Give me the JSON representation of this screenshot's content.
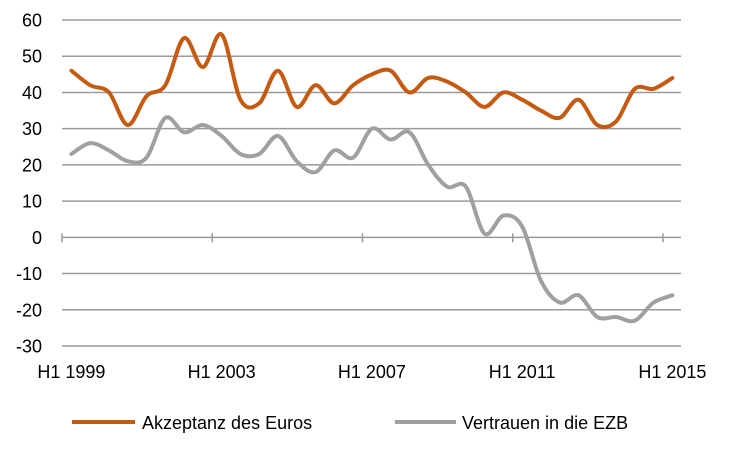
{
  "chart_data": {
    "type": "line",
    "title": "",
    "xlabel": "",
    "ylabel": "",
    "ylim": [
      -30,
      60
    ],
    "yticks": [
      60,
      50,
      40,
      30,
      20,
      10,
      0,
      -10,
      -20,
      -30
    ],
    "grid": true,
    "legend_position": "bottom",
    "x": [
      "H1 1999",
      "H2 1999",
      "H1 2000",
      "H2 2000",
      "H1 2001",
      "H2 2001",
      "H1 2002",
      "H2 2002",
      "H1 2003",
      "H2 2003",
      "H1 2004",
      "H2 2004",
      "H1 2005",
      "H2 2005",
      "H1 2006",
      "H2 2006",
      "H1 2007",
      "H2 2007",
      "H1 2008",
      "H2 2008",
      "H1 2009",
      "H2 2009",
      "H1 2010",
      "H2 2010",
      "H1 2011",
      "H2 2011",
      "H1 2012",
      "H2 2012",
      "H1 2013",
      "H2 2013",
      "H1 2014",
      "H2 2014",
      "H1 2015"
    ],
    "x_tick_labels": [
      "H1 1999",
      "H1 2003",
      "H1 2007",
      "H1 2011",
      "H1 2015"
    ],
    "x_tick_label_interval": 8,
    "series": [
      {
        "name": "Akzeptanz des Euros",
        "color": "#c55a11",
        "values": [
          46,
          42,
          40,
          31,
          39,
          42,
          55,
          47,
          56,
          38,
          37,
          46,
          36,
          42,
          37,
          42,
          45,
          46,
          40,
          44,
          43,
          40,
          36,
          40,
          38,
          35,
          33,
          38,
          31,
          32,
          41,
          41,
          44
        ]
      },
      {
        "name": "Vertrauen in die EZB",
        "color": "#a0a0a0",
        "values": [
          23,
          26,
          24,
          21,
          22,
          33,
          29,
          31,
          28,
          23,
          23,
          28,
          21,
          18,
          24,
          22,
          30,
          27,
          29,
          20,
          14,
          14,
          1,
          6,
          3,
          -12,
          -18,
          -16,
          -22,
          -22,
          -23,
          -18,
          -16
        ]
      }
    ]
  },
  "legend": {
    "items": [
      {
        "label": "Akzeptanz des Euros",
        "color": "#c55a11"
      },
      {
        "label": "Vertrauen in die EZB",
        "color": "#a0a0a0"
      }
    ]
  },
  "colors": {
    "gridline": "#9a9a9a",
    "text": "#000000",
    "background": "#ffffff"
  }
}
